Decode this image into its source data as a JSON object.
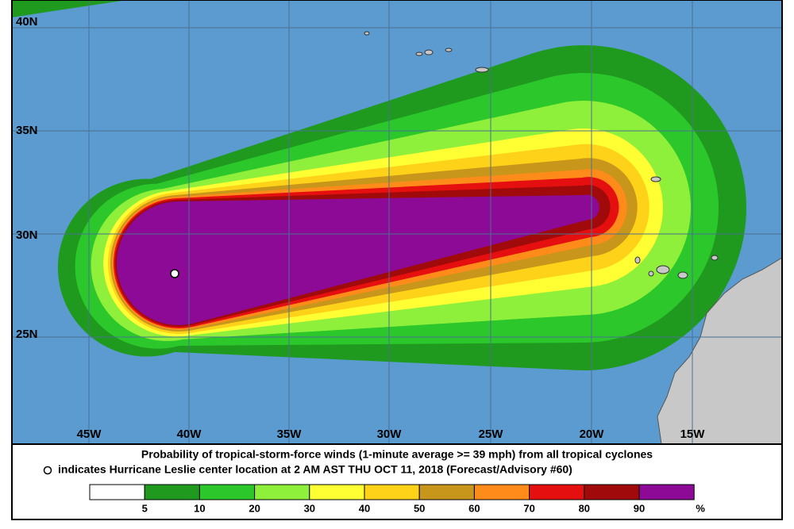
{
  "map": {
    "lat_labels": [
      "40N",
      "35N",
      "30N",
      "25N"
    ],
    "lon_labels": [
      "45W",
      "40W",
      "35W",
      "30W",
      "25W",
      "20W",
      "15W"
    ]
  },
  "caption": {
    "line1": "Probability of tropical-storm-force winds (1-minute average >= 39 mph) from all tropical cyclones",
    "line2": "indicates Hurricane Leslie center location at 2 AM AST THU OCT 11, 2018 (Forecast/Advisory #60)"
  },
  "legend": {
    "values": [
      5,
      10,
      20,
      30,
      40,
      50,
      60,
      70,
      80,
      90
    ],
    "unit": "%",
    "colors": [
      "#ffffff",
      "#1f9a1f",
      "#2bc72b",
      "#8ef03a",
      "#ffff33",
      "#ffd21a",
      "#c8961a",
      "#ff8c1a",
      "#e60f0f",
      "#a00a0a",
      "#8c0a96"
    ]
  }
}
